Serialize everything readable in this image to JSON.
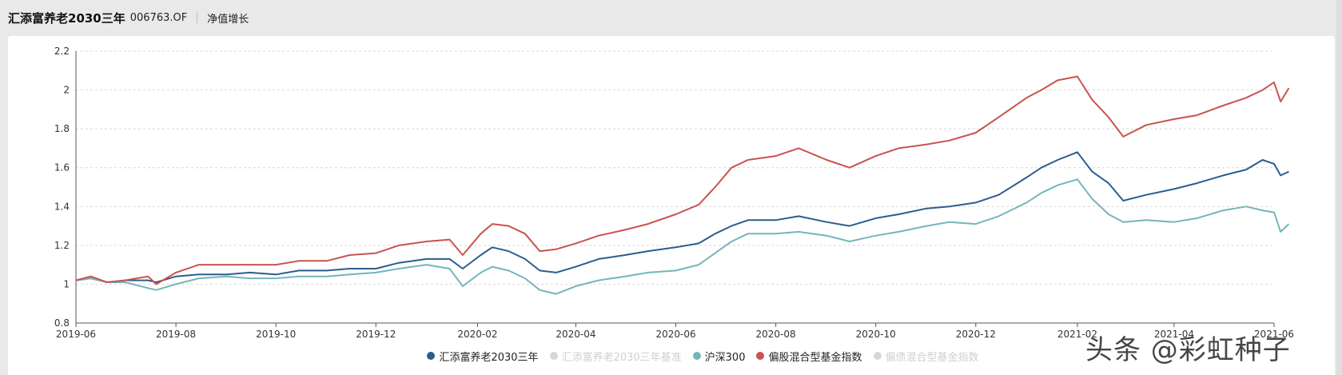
{
  "header": {
    "fund_name": "汇添富养老2030三年",
    "fund_code": "006763.OF",
    "tab_label": "净值增长"
  },
  "watermark": "头条 @彩虹种子",
  "colors": {
    "fund": "#2b5d8e",
    "benchmark": "#cccccc",
    "csi300": "#74b6b9",
    "equity_index": "#c9534f",
    "bond_index": "#cccccc",
    "grid": "#d8d8d8"
  },
  "chart_data": {
    "type": "line",
    "x_ticks": [
      "2019-06",
      "2019-08",
      "2019-10",
      "2019-12",
      "2020-02",
      "2020-04",
      "2020-06",
      "2020-08",
      "2020-10",
      "2020-12",
      "2021-02",
      "2021-04",
      "2021-06"
    ],
    "y_ticks": [
      "0.8",
      "1",
      "1.2",
      "1.4",
      "1.6",
      "1.8",
      "2",
      "2.2"
    ],
    "ylim": [
      0.8,
      2.2
    ],
    "xlim": [
      "2019-06",
      "2021-06"
    ],
    "grid": true,
    "legend_position": "bottom",
    "series": [
      {
        "name": "汇添富养老2030三年",
        "visible": true,
        "color_key": "fund",
        "points": [
          [
            "2019-06",
            1.02
          ],
          [
            "2019-06-10",
            1.03
          ],
          [
            "2019-06-20",
            1.01
          ],
          [
            "2019-07-01",
            1.02
          ],
          [
            "2019-07-15",
            1.02
          ],
          [
            "2019-07-20",
            1.01
          ],
          [
            "2019-08-01",
            1.04
          ],
          [
            "2019-08-15",
            1.05
          ],
          [
            "2019-09-01",
            1.05
          ],
          [
            "2019-09-15",
            1.06
          ],
          [
            "2019-10-01",
            1.05
          ],
          [
            "2019-10-15",
            1.07
          ],
          [
            "2019-11-01",
            1.07
          ],
          [
            "2019-11-15",
            1.08
          ],
          [
            "2019-12-01",
            1.08
          ],
          [
            "2019-12-15",
            1.11
          ],
          [
            "2020-01-01",
            1.13
          ],
          [
            "2020-01-15",
            1.13
          ],
          [
            "2020-01-23",
            1.08
          ],
          [
            "2020-02-03",
            1.15
          ],
          [
            "2020-02-10",
            1.19
          ],
          [
            "2020-02-20",
            1.17
          ],
          [
            "2020-03-01",
            1.13
          ],
          [
            "2020-03-10",
            1.07
          ],
          [
            "2020-03-20",
            1.06
          ],
          [
            "2020-04-01",
            1.09
          ],
          [
            "2020-04-15",
            1.13
          ],
          [
            "2020-05-01",
            1.15
          ],
          [
            "2020-05-15",
            1.17
          ],
          [
            "2020-06-01",
            1.19
          ],
          [
            "2020-06-15",
            1.21
          ],
          [
            "2020-06-25",
            1.26
          ],
          [
            "2020-07-05",
            1.3
          ],
          [
            "2020-07-15",
            1.33
          ],
          [
            "2020-08-01",
            1.33
          ],
          [
            "2020-08-15",
            1.35
          ],
          [
            "2020-09-01",
            1.32
          ],
          [
            "2020-09-15",
            1.3
          ],
          [
            "2020-10-01",
            1.34
          ],
          [
            "2020-10-15",
            1.36
          ],
          [
            "2020-11-01",
            1.39
          ],
          [
            "2020-11-15",
            1.4
          ],
          [
            "2020-12-01",
            1.42
          ],
          [
            "2020-12-15",
            1.46
          ],
          [
            "2021-01-01",
            1.55
          ],
          [
            "2021-01-10",
            1.6
          ],
          [
            "2021-01-20",
            1.64
          ],
          [
            "2021-02-01",
            1.68
          ],
          [
            "2021-02-10",
            1.58
          ],
          [
            "2021-02-20",
            1.52
          ],
          [
            "2021-03-01",
            1.43
          ],
          [
            "2021-03-15",
            1.46
          ],
          [
            "2021-04-01",
            1.49
          ],
          [
            "2021-04-15",
            1.52
          ],
          [
            "2021-05-01",
            1.56
          ],
          [
            "2021-05-15",
            1.59
          ],
          [
            "2021-05-25",
            1.64
          ],
          [
            "2021-06-01",
            1.62
          ],
          [
            "2021-06-05",
            1.56
          ],
          [
            "2021-06-10",
            1.58
          ]
        ]
      },
      {
        "name": "汇添富养老2030三年基准",
        "visible": false,
        "color_key": "benchmark",
        "points": []
      },
      {
        "name": "沪深300",
        "visible": true,
        "color_key": "csi300",
        "points": [
          [
            "2019-06",
            1.02
          ],
          [
            "2019-06-10",
            1.03
          ],
          [
            "2019-06-20",
            1.01
          ],
          [
            "2019-07-01",
            1.01
          ],
          [
            "2019-07-15",
            0.98
          ],
          [
            "2019-07-20",
            0.97
          ],
          [
            "2019-08-01",
            1.0
          ],
          [
            "2019-08-15",
            1.03
          ],
          [
            "2019-09-01",
            1.04
          ],
          [
            "2019-09-15",
            1.03
          ],
          [
            "2019-10-01",
            1.03
          ],
          [
            "2019-10-15",
            1.04
          ],
          [
            "2019-11-01",
            1.04
          ],
          [
            "2019-11-15",
            1.05
          ],
          [
            "2019-12-01",
            1.06
          ],
          [
            "2019-12-15",
            1.08
          ],
          [
            "2020-01-01",
            1.1
          ],
          [
            "2020-01-15",
            1.08
          ],
          [
            "2020-01-23",
            0.99
          ],
          [
            "2020-02-03",
            1.06
          ],
          [
            "2020-02-10",
            1.09
          ],
          [
            "2020-02-20",
            1.07
          ],
          [
            "2020-03-01",
            1.03
          ],
          [
            "2020-03-10",
            0.97
          ],
          [
            "2020-03-20",
            0.95
          ],
          [
            "2020-04-01",
            0.99
          ],
          [
            "2020-04-15",
            1.02
          ],
          [
            "2020-05-01",
            1.04
          ],
          [
            "2020-05-15",
            1.06
          ],
          [
            "2020-06-01",
            1.07
          ],
          [
            "2020-06-15",
            1.1
          ],
          [
            "2020-06-25",
            1.16
          ],
          [
            "2020-07-05",
            1.22
          ],
          [
            "2020-07-15",
            1.26
          ],
          [
            "2020-08-01",
            1.26
          ],
          [
            "2020-08-15",
            1.27
          ],
          [
            "2020-09-01",
            1.25
          ],
          [
            "2020-09-15",
            1.22
          ],
          [
            "2020-10-01",
            1.25
          ],
          [
            "2020-10-15",
            1.27
          ],
          [
            "2020-11-01",
            1.3
          ],
          [
            "2020-11-15",
            1.32
          ],
          [
            "2020-12-01",
            1.31
          ],
          [
            "2020-12-15",
            1.35
          ],
          [
            "2021-01-01",
            1.42
          ],
          [
            "2021-01-10",
            1.47
          ],
          [
            "2021-01-20",
            1.51
          ],
          [
            "2021-02-01",
            1.54
          ],
          [
            "2021-02-10",
            1.44
          ],
          [
            "2021-02-20",
            1.36
          ],
          [
            "2021-03-01",
            1.32
          ],
          [
            "2021-03-15",
            1.33
          ],
          [
            "2021-04-01",
            1.32
          ],
          [
            "2021-04-15",
            1.34
          ],
          [
            "2021-05-01",
            1.38
          ],
          [
            "2021-05-15",
            1.4
          ],
          [
            "2021-05-25",
            1.38
          ],
          [
            "2021-06-01",
            1.37
          ],
          [
            "2021-06-05",
            1.27
          ],
          [
            "2021-06-10",
            1.31
          ]
        ]
      },
      {
        "name": "偏股混合型基金指数",
        "visible": true,
        "color_key": "equity_index",
        "points": [
          [
            "2019-06",
            1.02
          ],
          [
            "2019-06-10",
            1.04
          ],
          [
            "2019-06-20",
            1.01
          ],
          [
            "2019-07-01",
            1.02
          ],
          [
            "2019-07-15",
            1.04
          ],
          [
            "2019-07-20",
            1.0
          ],
          [
            "2019-08-01",
            1.06
          ],
          [
            "2019-08-15",
            1.1
          ],
          [
            "2019-09-01",
            1.1
          ],
          [
            "2019-09-15",
            1.1
          ],
          [
            "2019-10-01",
            1.1
          ],
          [
            "2019-10-15",
            1.12
          ],
          [
            "2019-11-01",
            1.12
          ],
          [
            "2019-11-15",
            1.15
          ],
          [
            "2019-12-01",
            1.16
          ],
          [
            "2019-12-15",
            1.2
          ],
          [
            "2020-01-01",
            1.22
          ],
          [
            "2020-01-15",
            1.23
          ],
          [
            "2020-01-23",
            1.15
          ],
          [
            "2020-02-03",
            1.26
          ],
          [
            "2020-02-10",
            1.31
          ],
          [
            "2020-02-20",
            1.3
          ],
          [
            "2020-03-01",
            1.26
          ],
          [
            "2020-03-10",
            1.17
          ],
          [
            "2020-03-20",
            1.18
          ],
          [
            "2020-04-01",
            1.21
          ],
          [
            "2020-04-15",
            1.25
          ],
          [
            "2020-05-01",
            1.28
          ],
          [
            "2020-05-15",
            1.31
          ],
          [
            "2020-06-01",
            1.36
          ],
          [
            "2020-06-15",
            1.41
          ],
          [
            "2020-06-25",
            1.5
          ],
          [
            "2020-07-05",
            1.6
          ],
          [
            "2020-07-15",
            1.64
          ],
          [
            "2020-08-01",
            1.66
          ],
          [
            "2020-08-15",
            1.7
          ],
          [
            "2020-09-01",
            1.64
          ],
          [
            "2020-09-15",
            1.6
          ],
          [
            "2020-10-01",
            1.66
          ],
          [
            "2020-10-15",
            1.7
          ],
          [
            "2020-11-01",
            1.72
          ],
          [
            "2020-11-15",
            1.74
          ],
          [
            "2020-12-01",
            1.78
          ],
          [
            "2020-12-15",
            1.86
          ],
          [
            "2021-01-01",
            1.96
          ],
          [
            "2021-01-10",
            2.0
          ],
          [
            "2021-01-20",
            2.05
          ],
          [
            "2021-02-01",
            2.07
          ],
          [
            "2021-02-10",
            1.95
          ],
          [
            "2021-02-20",
            1.86
          ],
          [
            "2021-03-01",
            1.76
          ],
          [
            "2021-03-15",
            1.82
          ],
          [
            "2021-04-01",
            1.85
          ],
          [
            "2021-04-15",
            1.87
          ],
          [
            "2021-05-01",
            1.92
          ],
          [
            "2021-05-15",
            1.96
          ],
          [
            "2021-05-25",
            2.0
          ],
          [
            "2021-06-01",
            2.04
          ],
          [
            "2021-06-05",
            1.94
          ],
          [
            "2021-06-10",
            2.01
          ]
        ]
      },
      {
        "name": "偏债混合型基金指数",
        "visible": false,
        "color_key": "bond_index",
        "points": []
      }
    ]
  }
}
